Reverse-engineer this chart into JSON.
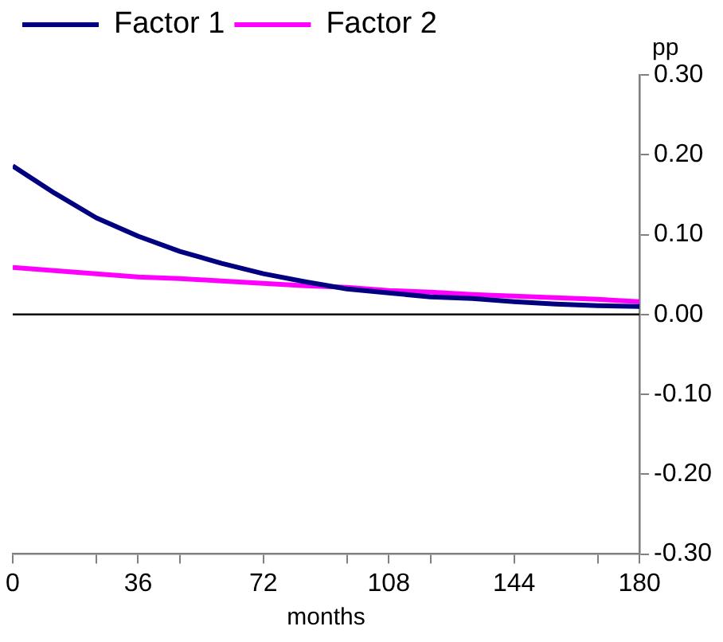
{
  "chart_data": {
    "type": "line",
    "xlabel": "months",
    "ylabel": "pp",
    "x": [
      0,
      12,
      24,
      36,
      48,
      60,
      72,
      84,
      96,
      108,
      120,
      132,
      144,
      156,
      168,
      180
    ],
    "series": [
      {
        "name": "Factor 1",
        "color": "#000080",
        "values": [
          0.186,
          0.152,
          0.121,
          0.098,
          0.079,
          0.064,
          0.051,
          0.041,
          0.032,
          0.027,
          0.022,
          0.02,
          0.016,
          0.013,
          0.011,
          0.01
        ]
      },
      {
        "name": "Factor 2",
        "color": "#ff00ff",
        "values": [
          0.059,
          0.055,
          0.051,
          0.047,
          0.045,
          0.042,
          0.039,
          0.036,
          0.034,
          0.03,
          0.028,
          0.025,
          0.023,
          0.021,
          0.019,
          0.016
        ]
      }
    ],
    "xlim": [
      0,
      180
    ],
    "xticks": [
      0,
      {
        "value": 24,
        "label": null
      },
      36,
      {
        "value": 48,
        "label": null
      },
      72,
      {
        "value": 96,
        "label": null
      },
      108,
      {
        "value": 120,
        "label": null
      },
      144,
      {
        "value": 168,
        "label": null
      },
      180
    ],
    "ylim": [
      -0.3,
      0.3
    ],
    "yticks": [
      {
        "value": -0.3,
        "label": "-0.30"
      },
      {
        "value": -0.2,
        "label": "-0.20"
      },
      {
        "value": -0.1,
        "label": "-0.10"
      },
      {
        "value": 0,
        "label": "0.00"
      },
      {
        "value": 0.1,
        "label": "0.10"
      },
      {
        "value": 0.2,
        "label": "0.20"
      },
      {
        "value": 0.3,
        "label": "0.30"
      }
    ],
    "ref_lines": [
      {
        "axis": "y",
        "value": 0,
        "color": "#000000"
      }
    ],
    "grid": false,
    "legend": "top left",
    "marker": "none",
    "line_style": "solid"
  }
}
